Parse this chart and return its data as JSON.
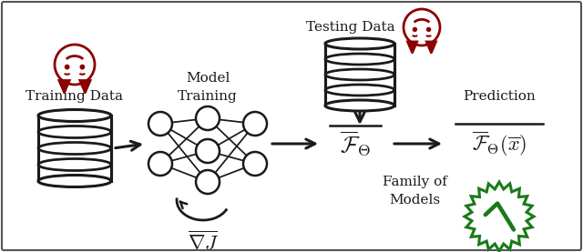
{
  "bg_color": "#ffffff",
  "border_color": "#555555",
  "arrow_color": "#1a1a1a",
  "db_color": "#1a1a1a",
  "devil_color": "#8b0000",
  "green_color": "#1a7a1a",
  "text_color": "#1a1a1a",
  "figsize": [
    6.4,
    2.77
  ],
  "dpi": 100,
  "labels": {
    "training_data": "Training Data",
    "model_training": "Model\nTraining",
    "family_of_models": "Family of\nModels",
    "prediction": "Prediction",
    "testing_data": "Testing Data"
  }
}
